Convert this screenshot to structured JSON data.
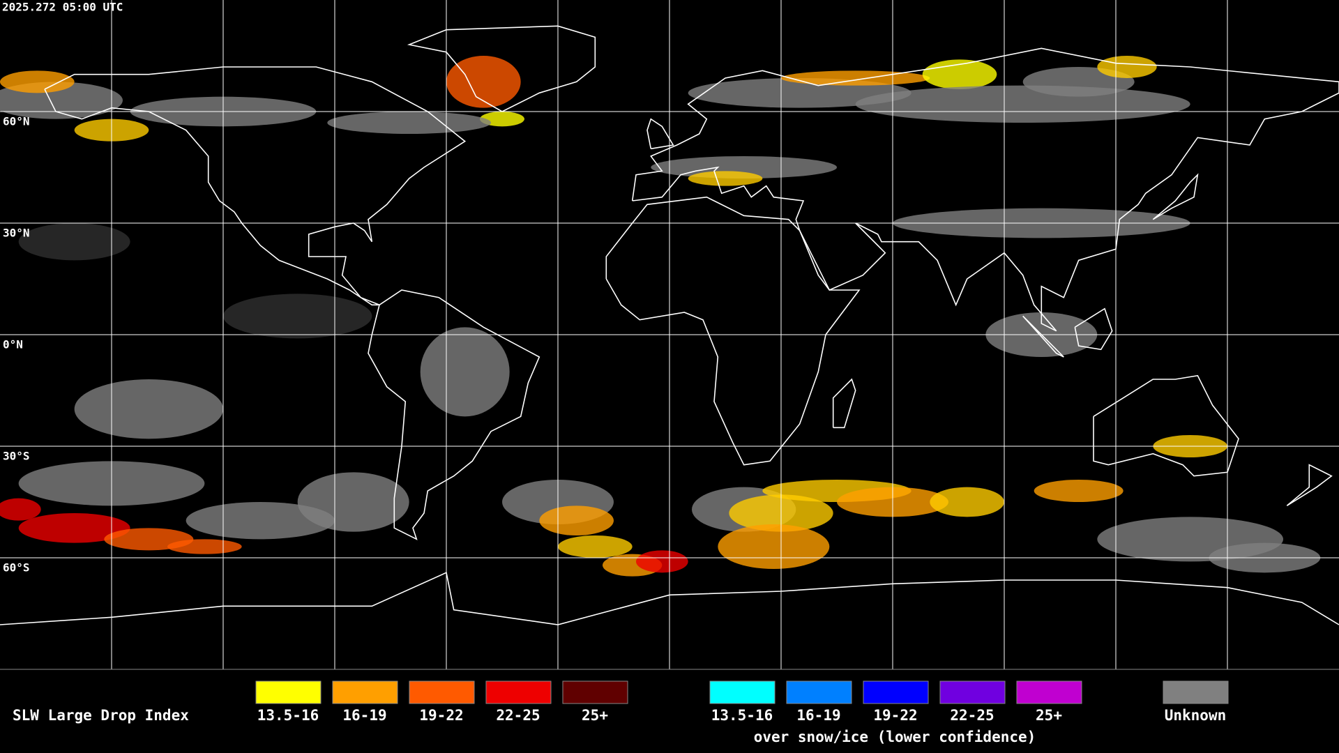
{
  "timestamp": "2025.272 05:00 UTC",
  "latitude_labels": [
    "60°N",
    "30°N",
    "0°N",
    "30°S",
    "60°S"
  ],
  "legend": {
    "title": "SLW Large Drop Index",
    "main": [
      {
        "label": "13.5-16",
        "color": "#ffff00"
      },
      {
        "label": "16-19",
        "color": "#ff9f00"
      },
      {
        "label": "19-22",
        "color": "#ff5a00"
      },
      {
        "label": "22-25",
        "color": "#ee0000"
      },
      {
        "label": "25+",
        "color": "#600000"
      }
    ],
    "snow_ice": [
      {
        "label": "13.5-16",
        "color": "#00ffff"
      },
      {
        "label": "16-19",
        "color": "#0080ff"
      },
      {
        "label": "19-22",
        "color": "#0000ff"
      },
      {
        "label": "22-25",
        "color": "#7000e0"
      },
      {
        "label": "25+",
        "color": "#c000d0"
      }
    ],
    "snow_ice_caption": "over snow/ice (lower confidence)",
    "unknown": {
      "label": "Unknown",
      "color": "#808080"
    }
  }
}
